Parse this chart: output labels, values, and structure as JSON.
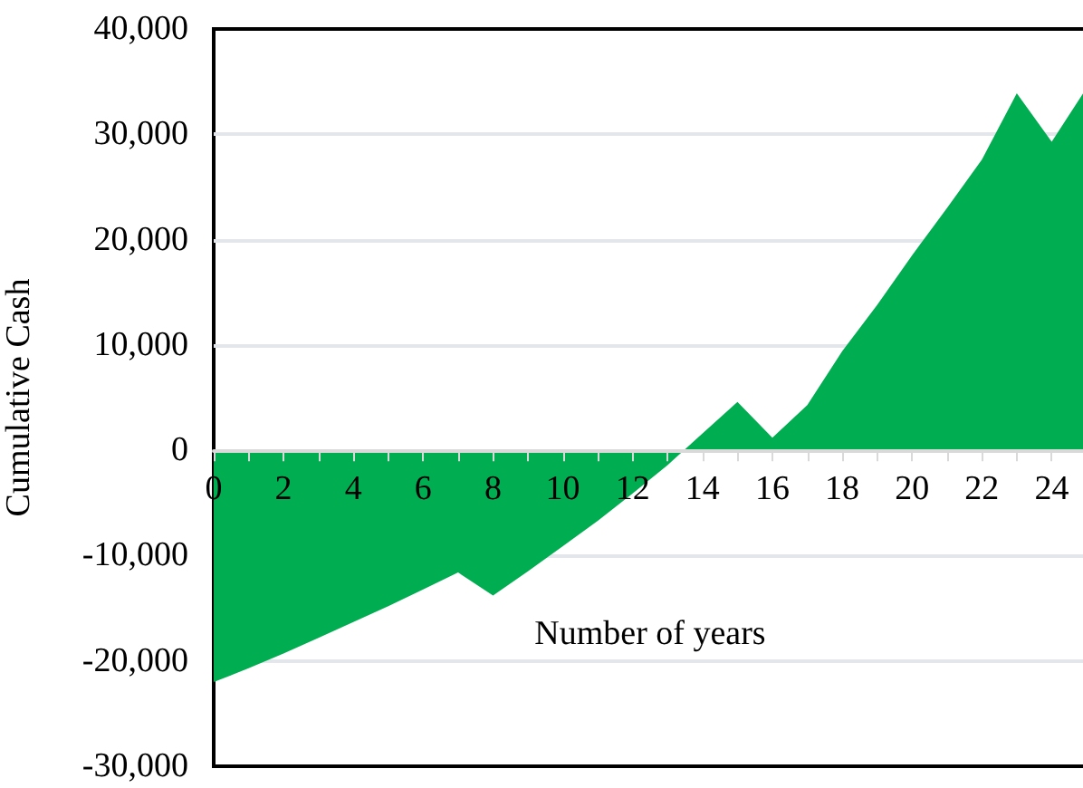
{
  "chart_data": {
    "type": "area",
    "xlabel": "Number of years",
    "ylabel": "Cumulative Cash",
    "x": [
      0,
      1,
      2,
      3,
      4,
      5,
      6,
      7,
      8,
      9,
      10,
      11,
      12,
      13,
      14,
      15,
      16,
      17,
      18,
      19,
      20,
      21,
      22,
      23,
      24,
      25
    ],
    "series": [
      {
        "color": "#00ad50",
        "values": [
          -22000,
          -20700,
          -19300,
          -17800,
          -16300,
          -14800,
          -13200,
          -11600,
          -13800,
          -11500,
          -9100,
          -6700,
          -4100,
          -1400,
          1600,
          4600,
          1200,
          4300,
          9400,
          13800,
          18500,
          23000,
          27600,
          33900,
          29300,
          34400
        ]
      }
    ],
    "xlim": [
      0,
      25
    ],
    "xticks": [
      0,
      {
        "value": 1,
        "label": null
      },
      2,
      {
        "value": 3,
        "label": null
      },
      4,
      {
        "value": 5,
        "label": null
      },
      6,
      {
        "value": 7,
        "label": null
      },
      8,
      {
        "value": 9,
        "label": null
      },
      10,
      {
        "value": 11,
        "label": null
      },
      12,
      {
        "value": 13,
        "label": null
      },
      14,
      {
        "value": 15,
        "label": null
      },
      16,
      {
        "value": 17,
        "label": null
      },
      18,
      {
        "value": 19,
        "label": null
      },
      20,
      {
        "value": 21,
        "label": null
      },
      22,
      {
        "value": 23,
        "label": null
      },
      24,
      {
        "value": 25,
        "label": null
      }
    ],
    "ylim": [
      -30000,
      40000
    ],
    "yticks": [
      {
        "value": -30000,
        "label": "-30,000"
      },
      {
        "value": -20000,
        "label": "-20,000"
      },
      {
        "value": -10000,
        "label": "-10,000"
      },
      0,
      {
        "value": 10000,
        "label": "10,000"
      },
      {
        "value": 20000,
        "label": "20,000"
      },
      {
        "value": 30000,
        "label": "30,000"
      },
      {
        "value": 40000,
        "label": "40,000"
      }
    ],
    "grid": "y",
    "marker": "none"
  }
}
